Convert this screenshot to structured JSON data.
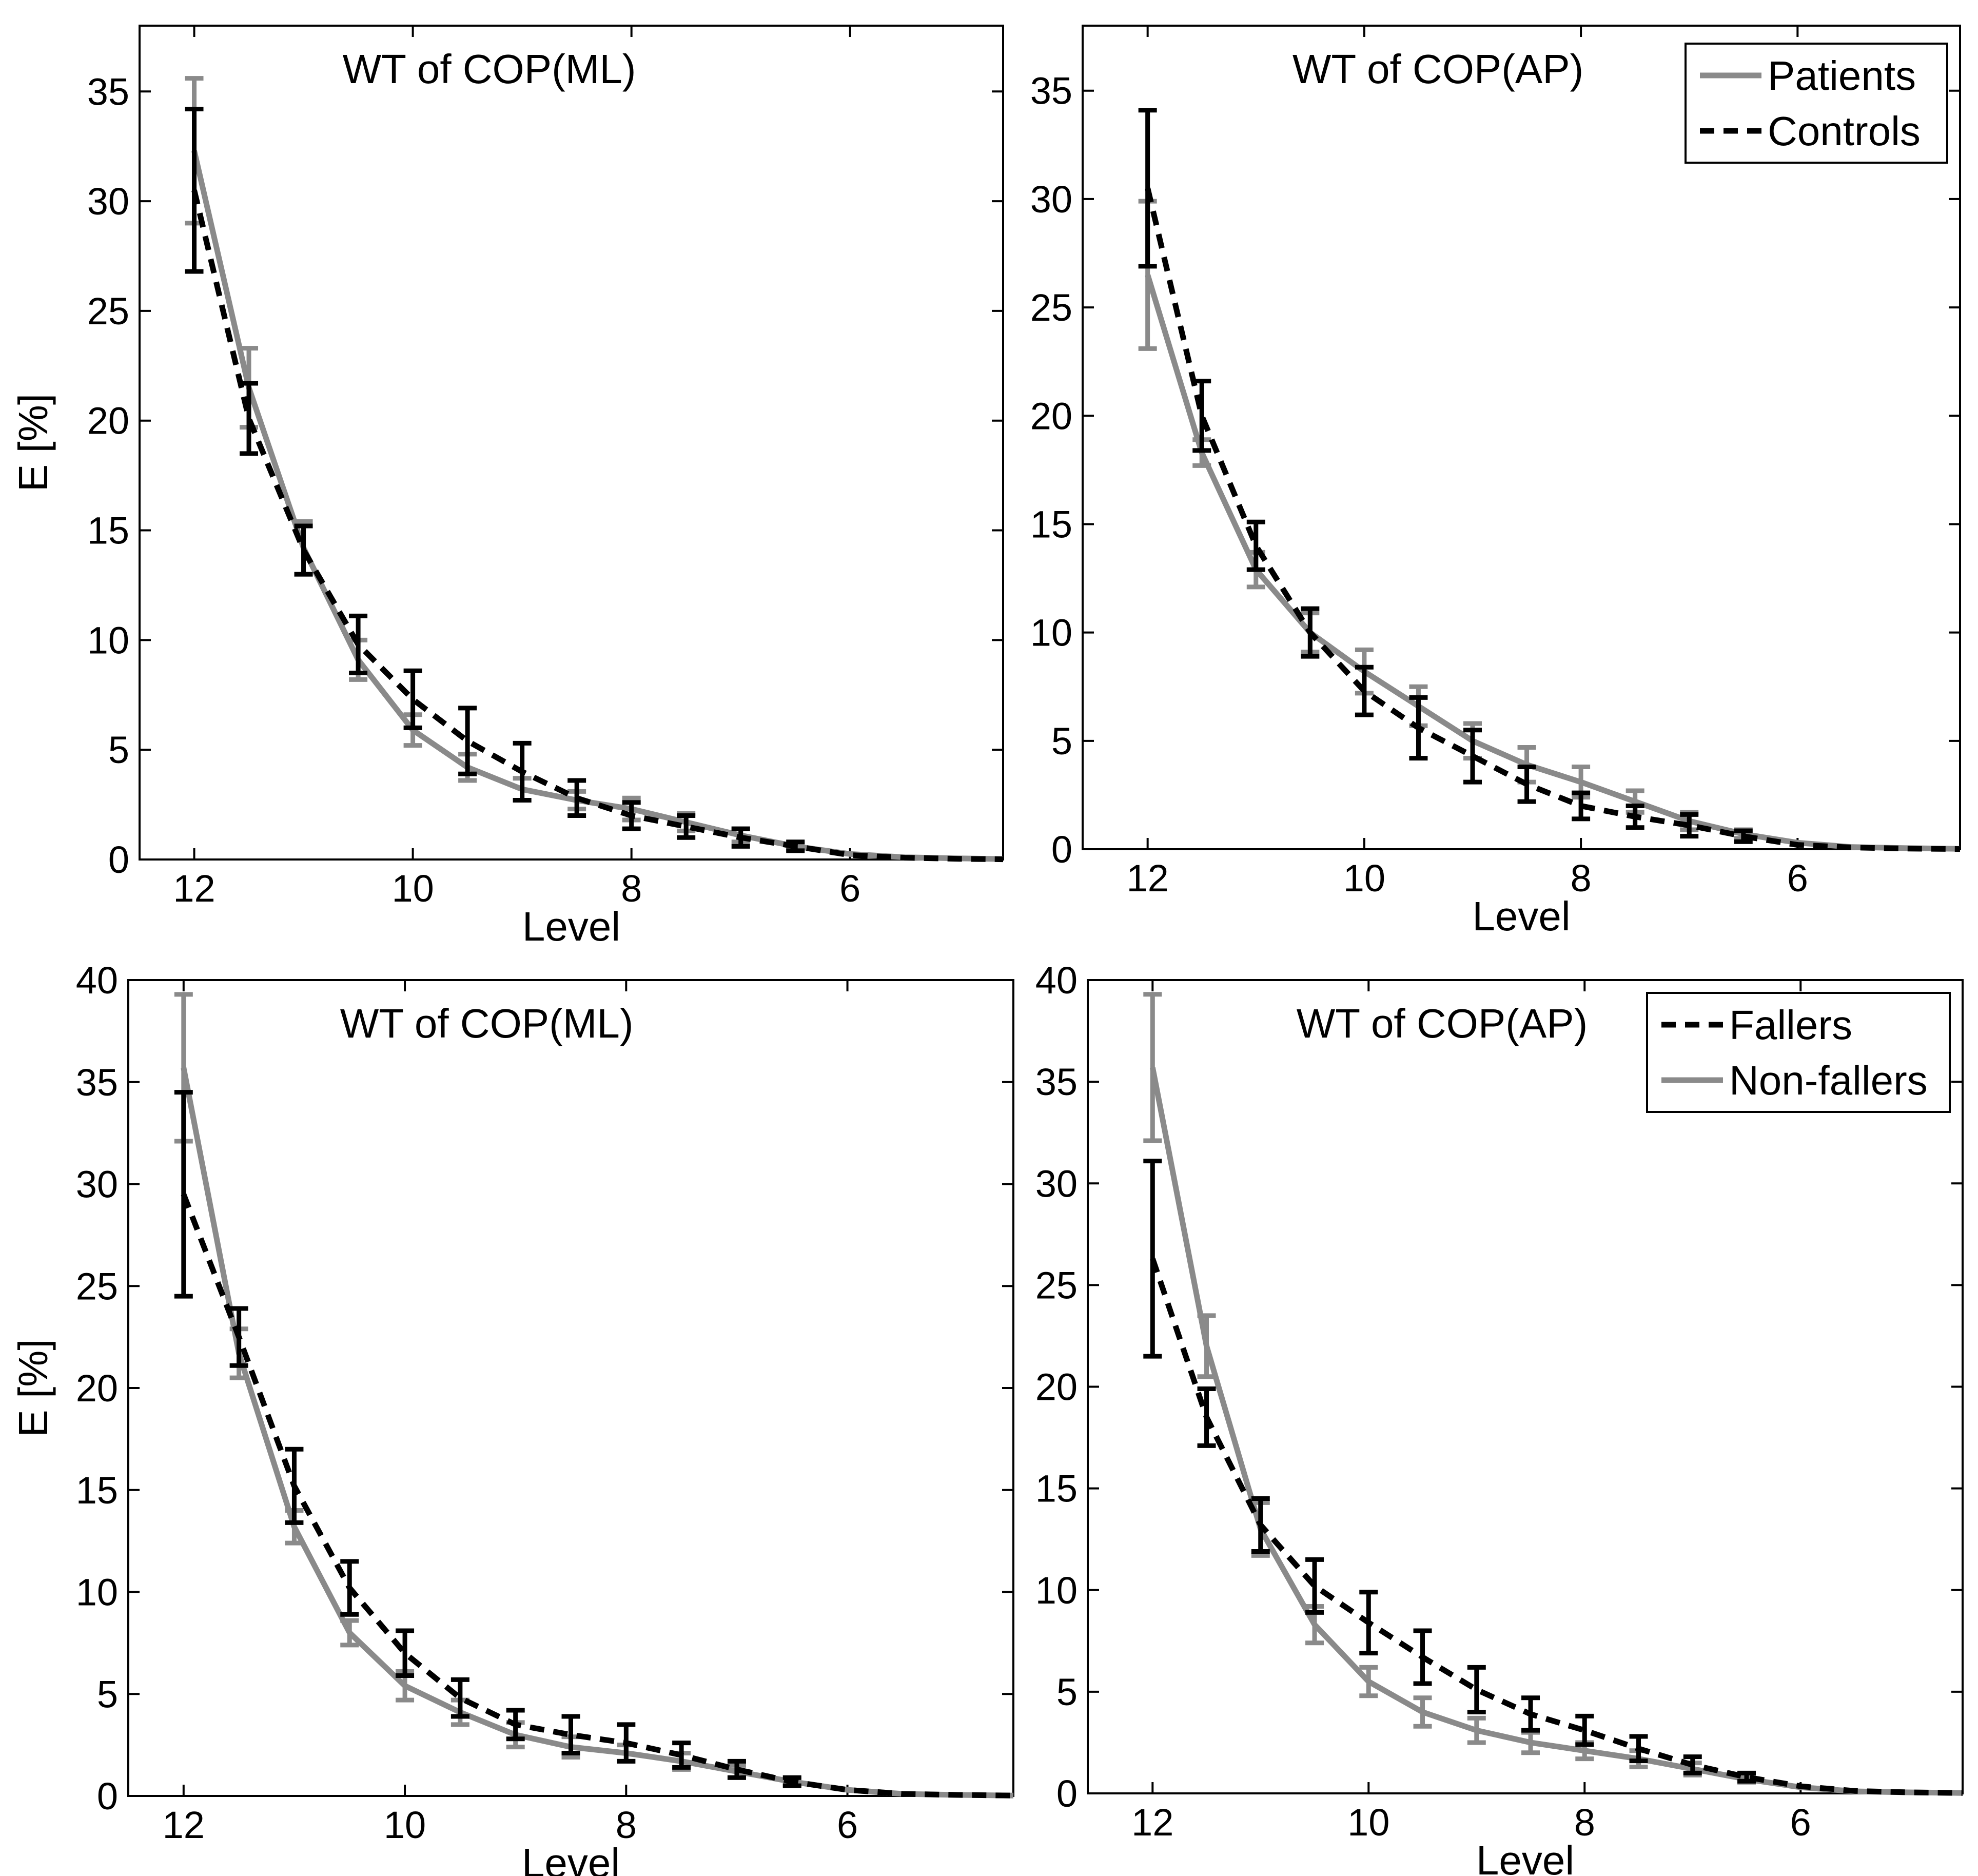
{
  "figure": {
    "colors": {
      "patients": "#8a8a8a",
      "controls": "#000000",
      "fallers": "#000000",
      "non_fallers": "#8a8a8a"
    }
  },
  "chart_data": [
    {
      "type": "line",
      "title": "WT of COP(ML)",
      "xlabel": "Level",
      "ylabel": "E [%]",
      "xlim": [
        12.5,
        4.6
      ],
      "ylim": [
        0,
        38
      ],
      "xticks": [
        12,
        10,
        8,
        6
      ],
      "yticks": [
        0,
        5,
        10,
        15,
        20,
        25,
        30,
        35
      ],
      "legend": null,
      "series": [
        {
          "name": "Patients",
          "style": "solid",
          "color": "#8a8a8a",
          "x": [
            12,
            11.5,
            11,
            10.5,
            10,
            9.5,
            9,
            8.5,
            8,
            7.5,
            7,
            6.5,
            6,
            5.5,
            5,
            4.6
          ],
          "y": [
            32.3,
            21.5,
            14.2,
            9.1,
            5.9,
            4.2,
            3.2,
            2.7,
            2.3,
            1.7,
            1.1,
            0.6,
            0.25,
            0.1,
            0.05,
            0.02
          ],
          "err": [
            3.3,
            1.8,
            1.2,
            0.9,
            0.7,
            0.6,
            0.5,
            0.4,
            0.5,
            0.4,
            0.3,
            0.15,
            0,
            0,
            0,
            0
          ]
        },
        {
          "name": "Controls",
          "style": "dashed",
          "color": "#000000",
          "x": [
            12,
            11.5,
            11,
            10.5,
            10,
            9.5,
            9,
            8.5,
            8,
            7.5,
            7,
            6.5,
            6,
            5.5,
            5,
            4.6
          ],
          "y": [
            30.5,
            20.1,
            14.1,
            9.8,
            7.3,
            5.4,
            4.0,
            2.8,
            2.0,
            1.5,
            1.0,
            0.6,
            0.2,
            0.08,
            0.03,
            0.01
          ],
          "err": [
            3.7,
            1.6,
            1.1,
            1.3,
            1.3,
            1.5,
            1.3,
            0.8,
            0.6,
            0.5,
            0.4,
            0.2,
            0,
            0,
            0,
            0
          ]
        }
      ]
    },
    {
      "type": "line",
      "title": "WT of COP(AP)",
      "xlabel": "Level",
      "ylabel": "",
      "xlim": [
        12.6,
        4.5
      ],
      "ylim": [
        0,
        38
      ],
      "xticks": [
        12,
        10,
        8,
        6
      ],
      "yticks": [
        0,
        5,
        10,
        15,
        20,
        25,
        30,
        35
      ],
      "legend": {
        "placement": "top-right",
        "entries": [
          {
            "label": "Patients",
            "style": "solid",
            "color": "#8a8a8a"
          },
          {
            "label": "Controls",
            "style": "dashed",
            "color": "#000000"
          }
        ]
      },
      "series": [
        {
          "name": "Patients",
          "style": "solid",
          "color": "#8a8a8a",
          "x": [
            12,
            11.5,
            11,
            10.5,
            10,
            9.5,
            9,
            8.5,
            8,
            7.5,
            7,
            6.5,
            6,
            5.5,
            5,
            4.5
          ],
          "y": [
            26.5,
            18.3,
            12.9,
            10.0,
            8.2,
            6.6,
            5.0,
            3.9,
            3.1,
            2.2,
            1.3,
            0.7,
            0.3,
            0.1,
            0.05,
            0.02
          ],
          "err": [
            3.4,
            0.6,
            0.8,
            0.9,
            1.0,
            0.9,
            0.8,
            0.8,
            0.7,
            0.5,
            0.4,
            0.2,
            0,
            0,
            0,
            0
          ]
        },
        {
          "name": "Controls",
          "style": "dashed",
          "color": "#000000",
          "x": [
            12,
            11.5,
            11,
            10.5,
            10,
            9.5,
            9,
            8.5,
            8,
            7.5,
            7,
            6.5,
            6,
            5.5,
            5,
            4.5
          ],
          "y": [
            30.5,
            20.0,
            14.0,
            10.0,
            7.3,
            5.6,
            4.3,
            3.0,
            2.0,
            1.5,
            1.1,
            0.6,
            0.2,
            0.08,
            0.03,
            0.01
          ],
          "err": [
            3.6,
            1.6,
            1.1,
            1.1,
            1.1,
            1.4,
            1.2,
            0.8,
            0.6,
            0.5,
            0.5,
            0.25,
            0,
            0,
            0,
            0
          ]
        }
      ]
    },
    {
      "type": "line",
      "title": "WT of COP(ML)",
      "xlabel": "Level",
      "ylabel": "E [%]",
      "xlim": [
        12.5,
        4.5
      ],
      "ylim": [
        0,
        40
      ],
      "xticks": [
        12,
        10,
        8,
        6
      ],
      "yticks": [
        0,
        5,
        10,
        15,
        20,
        25,
        30,
        35,
        40
      ],
      "legend": null,
      "series": [
        {
          "name": "Fallers",
          "style": "dashed",
          "color": "#000000",
          "x": [
            12,
            11.5,
            11,
            10.5,
            10,
            9.5,
            9,
            8.5,
            8,
            7.5,
            7,
            6.5,
            6,
            5.5,
            5,
            4.5
          ],
          "y": [
            29.5,
            22.5,
            15.2,
            10.2,
            7.0,
            4.8,
            3.5,
            3.0,
            2.6,
            2.0,
            1.3,
            0.7,
            0.3,
            0.1,
            0.05,
            0.02
          ],
          "err": [
            5.0,
            1.4,
            1.8,
            1.3,
            1.1,
            0.9,
            0.7,
            0.9,
            0.9,
            0.6,
            0.4,
            0.2,
            0,
            0,
            0,
            0
          ]
        },
        {
          "name": "Non-fallers",
          "style": "solid",
          "color": "#8a8a8a",
          "x": [
            12,
            11.5,
            11,
            10.5,
            10,
            9.5,
            9,
            8.5,
            8,
            7.5,
            7,
            6.5,
            6,
            5.5,
            5,
            4.5
          ],
          "y": [
            35.7,
            21.7,
            13.2,
            8.0,
            5.4,
            4.1,
            3.0,
            2.4,
            2.1,
            1.7,
            1.2,
            0.7,
            0.3,
            0.1,
            0.05,
            0.02
          ],
          "err": [
            3.6,
            1.2,
            0.8,
            0.6,
            0.7,
            0.6,
            0.6,
            0.5,
            0.4,
            0.4,
            0.3,
            0.15,
            0,
            0,
            0,
            0
          ]
        }
      ]
    },
    {
      "type": "line",
      "title": "WT of COP(AP)",
      "xlabel": "Level",
      "ylabel": "",
      "xlim": [
        12.6,
        4.5
      ],
      "ylim": [
        0,
        40
      ],
      "xticks": [
        12,
        10,
        8,
        6
      ],
      "yticks": [
        0,
        5,
        10,
        15,
        20,
        25,
        30,
        35,
        40
      ],
      "legend": {
        "placement": "top-right",
        "entries": [
          {
            "label": "Fallers",
            "style": "dashed",
            "color": "#000000"
          },
          {
            "label": "Non-fallers",
            "style": "solid",
            "color": "#8a8a8a"
          }
        ]
      },
      "series": [
        {
          "name": "Fallers",
          "style": "dashed",
          "color": "#000000",
          "x": [
            12,
            11.5,
            11,
            10.5,
            10,
            9.5,
            9,
            8.5,
            8,
            7.5,
            7,
            6.5,
            6,
            5.5,
            5,
            4.5
          ],
          "y": [
            26.3,
            18.5,
            13.2,
            10.2,
            8.4,
            6.7,
            5.1,
            3.9,
            3.1,
            2.2,
            1.4,
            0.8,
            0.35,
            0.12,
            0.05,
            0.02
          ],
          "err": [
            4.8,
            1.4,
            1.3,
            1.3,
            1.5,
            1.3,
            1.1,
            0.8,
            0.7,
            0.6,
            0.4,
            0.2,
            0,
            0,
            0,
            0
          ]
        },
        {
          "name": "Non-fallers",
          "style": "solid",
          "color": "#8a8a8a",
          "x": [
            12,
            11.5,
            11,
            10.5,
            10,
            9.5,
            9,
            8.5,
            8,
            7.5,
            7,
            6.5,
            6,
            5.5,
            5,
            4.5
          ],
          "y": [
            35.7,
            22.0,
            13.0,
            8.3,
            5.5,
            4.0,
            3.1,
            2.5,
            2.1,
            1.7,
            1.2,
            0.7,
            0.3,
            0.1,
            0.05,
            0.02
          ],
          "err": [
            3.6,
            1.5,
            1.3,
            0.9,
            0.7,
            0.7,
            0.6,
            0.5,
            0.4,
            0.4,
            0.3,
            0.15,
            0,
            0,
            0,
            0
          ]
        }
      ]
    }
  ]
}
